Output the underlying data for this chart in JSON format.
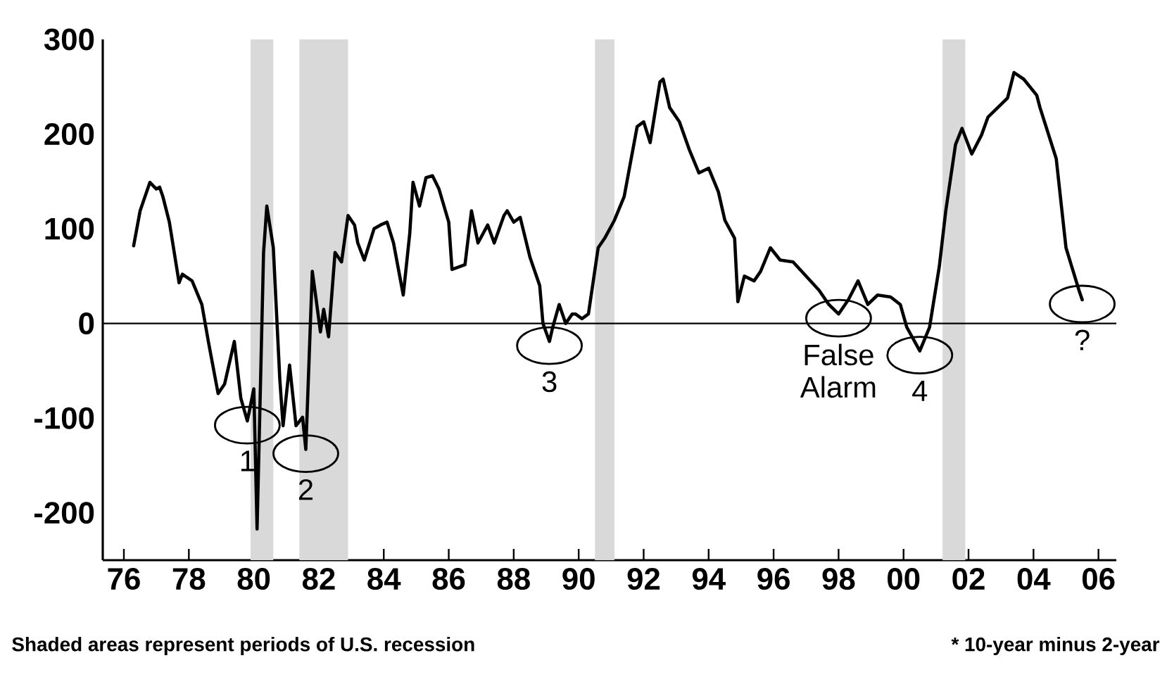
{
  "chart_data": {
    "type": "line",
    "x": [
      1976.3,
      1976.5,
      1976.8,
      1977.0,
      1977.1,
      1977.2,
      1977.4,
      1977.7,
      1977.8,
      1978.1,
      1978.4,
      1978.6,
      1978.9,
      1979.1,
      1979.4,
      1979.6,
      1979.8,
      1980.0,
      1980.1,
      1980.3,
      1980.4,
      1980.6,
      1980.8,
      1980.9,
      1981.1,
      1981.3,
      1981.5,
      1981.6,
      1981.8,
      1981.9,
      1982.05,
      1982.15,
      1982.3,
      1982.5,
      1982.7,
      1982.9,
      1983.1,
      1983.2,
      1983.4,
      1983.7,
      1983.9,
      1984.1,
      1984.3,
      1984.6,
      1984.8,
      1984.9,
      1985.1,
      1985.3,
      1985.5,
      1985.7,
      1986.0,
      1986.1,
      1986.5,
      1986.7,
      1986.9,
      1987.2,
      1987.4,
      1987.7,
      1987.8,
      1988.0,
      1988.2,
      1988.5,
      1988.8,
      1988.9,
      1989.1,
      1989.2,
      1989.4,
      1989.6,
      1989.8,
      1989.9,
      1990.1,
      1990.3,
      1990.6,
      1990.8,
      1991.1,
      1991.4,
      1991.8,
      1992.0,
      1992.2,
      1992.5,
      1992.6,
      1992.8,
      1993.1,
      1993.4,
      1993.7,
      1994.0,
      1994.3,
      1994.5,
      1994.8,
      1994.9,
      1995.1,
      1995.4,
      1995.6,
      1995.9,
      1996.2,
      1996.6,
      1997.0,
      1997.4,
      1997.7,
      1998.0,
      1998.3,
      1998.6,
      1998.9,
      1999.2,
      1999.6,
      1999.9,
      2000.1,
      2000.5,
      2000.8,
      2001.1,
      2001.3,
      2001.6,
      2001.8,
      2002.1,
      2002.4,
      2002.6,
      2002.9,
      2003.2,
      2003.4,
      2003.7,
      2004.1,
      2004.2,
      2004.7,
      2005.0,
      2005.4,
      2005.5
    ],
    "series": [
      {
        "color": "#000000",
        "values": [
          82,
          119,
          149,
          142,
          144,
          134,
          107,
          43,
          52,
          45,
          20,
          -19,
          -74,
          -64,
          -19,
          -79,
          -103,
          -69,
          -217,
          75,
          124,
          80,
          -59,
          -108,
          -44,
          -108,
          -99,
          -133,
          55,
          30,
          -9,
          15,
          -14,
          75,
          65,
          114,
          104,
          85,
          67,
          100,
          104,
          107,
          85,
          30,
          95,
          149,
          124,
          154,
          156,
          142,
          107,
          57,
          62,
          119,
          85,
          104,
          85,
          114,
          119,
          107,
          112,
          70,
          40,
          0,
          -19,
          -4,
          20,
          0,
          10,
          10,
          5,
          10,
          80,
          90,
          109,
          134,
          208,
          213,
          191,
          255,
          258,
          228,
          213,
          184,
          159,
          164,
          139,
          109,
          90,
          23,
          50,
          45,
          55,
          80,
          67,
          65,
          50,
          35,
          20,
          10,
          25,
          45,
          20,
          30,
          28,
          20,
          -4,
          -29,
          -4,
          60,
          119,
          189,
          206,
          179,
          199,
          218,
          228,
          238,
          265,
          258,
          241,
          228,
          174,
          80,
          35,
          25
        ]
      }
    ],
    "xlim": [
      1975.35,
      2006.55
    ],
    "ylim": [
      -250,
      300
    ],
    "xticks": [
      {
        "value": 1976,
        "label": "76"
      },
      {
        "value": 1978,
        "label": "78"
      },
      {
        "value": 1980,
        "label": "80"
      },
      {
        "value": 1982,
        "label": "82"
      },
      {
        "value": 1984,
        "label": "84"
      },
      {
        "value": 1986,
        "label": "86"
      },
      {
        "value": 1988,
        "label": "88"
      },
      {
        "value": 1990,
        "label": "90"
      },
      {
        "value": 1992,
        "label": "92"
      },
      {
        "value": 1994,
        "label": "94"
      },
      {
        "value": 1996,
        "label": "96"
      },
      {
        "value": 1998,
        "label": "98"
      },
      {
        "value": 2000,
        "label": "00"
      },
      {
        "value": 2002,
        "label": "02"
      },
      {
        "value": 2004,
        "label": "04"
      },
      {
        "value": 2006,
        "label": "06"
      }
    ],
    "yticks": [
      -200,
      -100,
      0,
      100,
      200,
      300
    ],
    "ref_lines": [
      {
        "axis": "y",
        "value": 0,
        "color": "#000000"
      }
    ],
    "bands": [
      {
        "axis": "x",
        "from": 1979.9,
        "to": 1980.6,
        "color": "#d9d9d9"
      },
      {
        "axis": "x",
        "from": 1981.4,
        "to": 1982.9,
        "color": "#d9d9d9"
      },
      {
        "axis": "x",
        "from": 1990.5,
        "to": 1991.1,
        "color": "#d9d9d9"
      },
      {
        "axis": "x",
        "from": 2001.2,
        "to": 2001.9,
        "color": "#d9d9d9"
      }
    ],
    "annotations": [
      {
        "text": "1",
        "x": 1979.8,
        "y": -103
      },
      {
        "text": "2",
        "x": 1981.6,
        "y": -133
      },
      {
        "text": "3",
        "x": 1989.1,
        "y": -19
      },
      {
        "text": "False Alarm",
        "x": 1998.0,
        "y": 10
      },
      {
        "text": "4",
        "x": 2000.5,
        "y": -29
      },
      {
        "text": "?",
        "x": 2005.5,
        "y": 25
      },
      "Shaded areas represent periods of U.S. recession",
      "* 10-year minus 2-year"
    ]
  }
}
